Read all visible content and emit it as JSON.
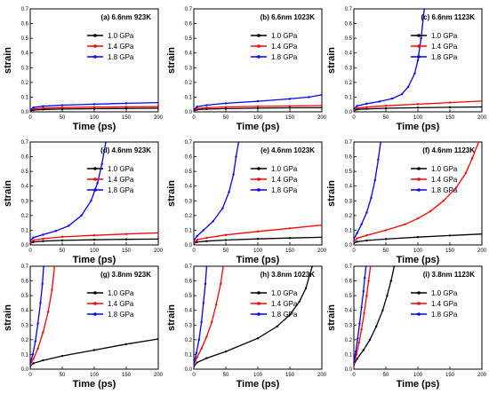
{
  "chart_data": [
    {
      "panel": "a",
      "type": "line",
      "title": "(a) 6.6nm  923K",
      "xlabel": "Time (ps)",
      "ylabel": "strain",
      "xlim": [
        0,
        200
      ],
      "ylim": [
        0,
        0.7
      ],
      "xticks": [
        "0",
        "50",
        "100",
        "150",
        "200"
      ],
      "yticks": [
        "0.0",
        "0.1",
        "0.2",
        "0.3",
        "0.4",
        "0.5",
        "0.6",
        "0.7"
      ],
      "legend": "top-right",
      "series": [
        {
          "name": "1.0 GPa",
          "color": "#000000",
          "x": [
            0,
            5,
            20,
            50,
            100,
            150,
            200
          ],
          "y": [
            0.005,
            0.012,
            0.016,
            0.019,
            0.021,
            0.023,
            0.024
          ]
        },
        {
          "name": "1.4 GPa",
          "color": "#ff0000",
          "x": [
            0,
            5,
            20,
            50,
            100,
            150,
            200
          ],
          "y": [
            0.008,
            0.02,
            0.025,
            0.029,
            0.032,
            0.034,
            0.035
          ]
        },
        {
          "name": "1.8 GPa",
          "color": "#0000ff",
          "x": [
            0,
            5,
            20,
            50,
            100,
            150,
            200
          ],
          "y": [
            0.012,
            0.03,
            0.038,
            0.045,
            0.052,
            0.058,
            0.063
          ]
        }
      ]
    },
    {
      "panel": "b",
      "type": "line",
      "title": "(b) 6.6nm  1023K",
      "xlabel": "Time (ps)",
      "ylabel": "strain",
      "xlim": [
        0,
        200
      ],
      "ylim": [
        0,
        0.7
      ],
      "xticks": [
        "0",
        "50",
        "100",
        "150",
        "200"
      ],
      "yticks": [
        "0.0",
        "0.1",
        "0.2",
        "0.3",
        "0.4",
        "0.5",
        "0.6",
        "0.7"
      ],
      "legend": "top-right",
      "series": [
        {
          "name": "1.0 GPa",
          "color": "#000000",
          "x": [
            0,
            5,
            20,
            50,
            100,
            150,
            200
          ],
          "y": [
            0.006,
            0.015,
            0.019,
            0.022,
            0.025,
            0.027,
            0.028
          ]
        },
        {
          "name": "1.4 GPa",
          "color": "#ff0000",
          "x": [
            0,
            5,
            20,
            50,
            100,
            150,
            200
          ],
          "y": [
            0.01,
            0.022,
            0.028,
            0.033,
            0.037,
            0.039,
            0.042
          ]
        },
        {
          "name": "1.8 GPa",
          "color": "#0000ff",
          "x": [
            0,
            5,
            20,
            50,
            100,
            150,
            180,
            200
          ],
          "y": [
            0.015,
            0.035,
            0.045,
            0.058,
            0.072,
            0.088,
            0.1,
            0.115
          ]
        }
      ]
    },
    {
      "panel": "c",
      "type": "line",
      "title": "(c) 6.6nm  1123K",
      "xlabel": "Time (ps)",
      "ylabel": "strain",
      "xlim": [
        0,
        200
      ],
      "ylim": [
        0,
        0.7
      ],
      "xticks": [
        "0",
        "50",
        "100",
        "150",
        "200"
      ],
      "yticks": [
        "0.0",
        "0.1",
        "0.2",
        "0.3",
        "0.4",
        "0.5",
        "0.6",
        "0.7"
      ],
      "legend": "top-right",
      "series": [
        {
          "name": "1.0 GPa",
          "color": "#000000",
          "x": [
            0,
            5,
            20,
            50,
            100,
            150,
            200
          ],
          "y": [
            0.007,
            0.016,
            0.02,
            0.024,
            0.028,
            0.031,
            0.033
          ]
        },
        {
          "name": "1.4 GPa",
          "color": "#ff0000",
          "x": [
            0,
            5,
            20,
            50,
            100,
            150,
            200
          ],
          "y": [
            0.012,
            0.025,
            0.032,
            0.041,
            0.052,
            0.063,
            0.073
          ]
        },
        {
          "name": "1.8 GPa",
          "color": "#0000ff",
          "x": [
            0,
            5,
            20,
            40,
            60,
            75,
            85,
            95,
            100,
            105,
            110
          ],
          "y": [
            0.02,
            0.04,
            0.055,
            0.07,
            0.09,
            0.12,
            0.17,
            0.26,
            0.35,
            0.5,
            0.7
          ]
        }
      ]
    },
    {
      "panel": "d",
      "type": "line",
      "title": "(d) 4.6nm  923K",
      "xlabel": "Time (ps)",
      "ylabel": "strain",
      "xlim": [
        0,
        200
      ],
      "ylim": [
        0,
        0.7
      ],
      "xticks": [
        "0",
        "50",
        "100",
        "150",
        "200"
      ],
      "yticks": [
        "0.0",
        "0.1",
        "0.2",
        "0.3",
        "0.4",
        "0.5",
        "0.6",
        "0.7"
      ],
      "legend": "top-right",
      "series": [
        {
          "name": "1.0 GPa",
          "color": "#000000",
          "x": [
            0,
            5,
            20,
            50,
            100,
            150,
            200
          ],
          "y": [
            0.01,
            0.02,
            0.026,
            0.031,
            0.035,
            0.038,
            0.04
          ]
        },
        {
          "name": "1.4 GPa",
          "color": "#ff0000",
          "x": [
            0,
            5,
            20,
            50,
            100,
            150,
            200
          ],
          "y": [
            0.015,
            0.032,
            0.042,
            0.055,
            0.065,
            0.074,
            0.082
          ]
        },
        {
          "name": "1.8 GPa",
          "color": "#0000ff",
          "x": [
            0,
            5,
            20,
            40,
            60,
            80,
            95,
            105,
            112,
            118
          ],
          "y": [
            0.03,
            0.05,
            0.07,
            0.095,
            0.13,
            0.2,
            0.3,
            0.42,
            0.55,
            0.7
          ]
        }
      ]
    },
    {
      "panel": "e",
      "type": "line",
      "title": "(e) 4.6nm  1023K",
      "xlabel": "Time (ps)",
      "ylabel": "strain",
      "xlim": [
        0,
        200
      ],
      "ylim": [
        0,
        0.7
      ],
      "xticks": [
        "0",
        "50",
        "100",
        "150",
        "200"
      ],
      "yticks": [
        "0.0",
        "0.1",
        "0.2",
        "0.3",
        "0.4",
        "0.5",
        "0.6",
        "0.7"
      ],
      "legend": "top-right",
      "series": [
        {
          "name": "1.0 GPa",
          "color": "#000000",
          "x": [
            0,
            5,
            20,
            50,
            100,
            150,
            200
          ],
          "y": [
            0.01,
            0.02,
            0.026,
            0.033,
            0.041,
            0.047,
            0.052
          ]
        },
        {
          "name": "1.4 GPa",
          "color": "#ff0000",
          "x": [
            0,
            5,
            20,
            50,
            100,
            150,
            200
          ],
          "y": [
            0.015,
            0.035,
            0.048,
            0.068,
            0.092,
            0.113,
            0.135
          ]
        },
        {
          "name": "1.8 GPa",
          "color": "#0000ff",
          "x": [
            0,
            5,
            15,
            30,
            45,
            55,
            62,
            66,
            70
          ],
          "y": [
            0.03,
            0.06,
            0.1,
            0.16,
            0.25,
            0.36,
            0.48,
            0.6,
            0.7
          ]
        }
      ]
    },
    {
      "panel": "f",
      "type": "line",
      "title": "(f) 4.6nm  1123K",
      "xlabel": "Time (ps)",
      "ylabel": "strain",
      "xlim": [
        0,
        200
      ],
      "ylim": [
        0,
        0.7
      ],
      "xticks": [
        "0",
        "50",
        "100",
        "150",
        "200"
      ],
      "yticks": [
        "0.0",
        "0.1",
        "0.2",
        "0.3",
        "0.4",
        "0.5",
        "0.6",
        "0.7"
      ],
      "legend": "top-right",
      "series": [
        {
          "name": "1.0 GPa",
          "color": "#000000",
          "x": [
            0,
            5,
            20,
            50,
            100,
            150,
            200
          ],
          "y": [
            0.012,
            0.022,
            0.03,
            0.04,
            0.053,
            0.064,
            0.074
          ]
        },
        {
          "name": "1.4 GPa",
          "color": "#ff0000",
          "x": [
            0,
            5,
            20,
            50,
            80,
            100,
            120,
            140,
            160,
            175,
            185,
            195
          ],
          "y": [
            0.02,
            0.045,
            0.065,
            0.1,
            0.14,
            0.18,
            0.23,
            0.3,
            0.39,
            0.49,
            0.59,
            0.7
          ]
        },
        {
          "name": "1.8 GPa",
          "color": "#0000ff",
          "x": [
            0,
            5,
            12,
            20,
            27,
            33,
            38,
            42
          ],
          "y": [
            0.04,
            0.08,
            0.14,
            0.22,
            0.32,
            0.44,
            0.58,
            0.7
          ]
        }
      ]
    },
    {
      "panel": "g",
      "type": "line",
      "title": "(g) 3.8nm  923K",
      "xlabel": "Time (ps)",
      "ylabel": "strain",
      "xlim": [
        0,
        200
      ],
      "ylim": [
        0,
        0.7
      ],
      "xticks": [
        "0",
        "50",
        "100",
        "150",
        "200"
      ],
      "yticks": [
        "0.0",
        "0.1",
        "0.2",
        "0.3",
        "0.4",
        "0.5",
        "0.6",
        "0.7"
      ],
      "legend": "top-right",
      "series": [
        {
          "name": "1.0 GPa",
          "color": "#000000",
          "x": [
            0,
            5,
            20,
            50,
            100,
            150,
            200
          ],
          "y": [
            0.02,
            0.04,
            0.06,
            0.09,
            0.13,
            0.17,
            0.205
          ]
        },
        {
          "name": "1.4 GPa",
          "color": "#ff0000",
          "x": [
            0,
            5,
            12,
            20,
            28,
            34,
            38
          ],
          "y": [
            0.03,
            0.07,
            0.14,
            0.25,
            0.39,
            0.54,
            0.7
          ]
        },
        {
          "name": "1.8 GPa",
          "color": "#0000ff",
          "x": [
            0,
            4,
            8,
            12,
            16,
            19,
            21
          ],
          "y": [
            0.04,
            0.1,
            0.19,
            0.31,
            0.45,
            0.58,
            0.7
          ]
        }
      ]
    },
    {
      "panel": "h",
      "type": "line",
      "title": "(h) 3.8nm  1023K",
      "xlabel": "Time (ps)",
      "ylabel": "strain",
      "xlim": [
        0,
        200
      ],
      "ylim": [
        0,
        0.7
      ],
      "xticks": [
        "0",
        "50",
        "100",
        "150",
        "200"
      ],
      "yticks": [
        "0.0",
        "0.1",
        "0.2",
        "0.3",
        "0.4",
        "0.5",
        "0.6",
        "0.7"
      ],
      "legend": "top-right",
      "series": [
        {
          "name": "1.0 GPa",
          "color": "#000000",
          "x": [
            0,
            5,
            20,
            50,
            100,
            130,
            150,
            165,
            175,
            185
          ],
          "y": [
            0.02,
            0.045,
            0.075,
            0.12,
            0.21,
            0.29,
            0.37,
            0.46,
            0.55,
            0.7
          ]
        },
        {
          "name": "1.4 GPa",
          "color": "#ff0000",
          "x": [
            0,
            5,
            12,
            20,
            28,
            35,
            42,
            46
          ],
          "y": [
            0.03,
            0.08,
            0.14,
            0.22,
            0.32,
            0.44,
            0.58,
            0.7
          ]
        },
        {
          "name": "1.8 GPa",
          "color": "#0000ff",
          "x": [
            0,
            4,
            8,
            12,
            15,
            18,
            20
          ],
          "y": [
            0.04,
            0.11,
            0.2,
            0.32,
            0.45,
            0.58,
            0.7
          ]
        }
      ]
    },
    {
      "panel": "i",
      "type": "line",
      "title": "(i) 3.8nm  1123K",
      "xlabel": "Time (ps)",
      "ylabel": "strain",
      "xlim": [
        0,
        200
      ],
      "ylim": [
        0,
        0.7
      ],
      "xticks": [
        "0",
        "50",
        "100",
        "150",
        "200"
      ],
      "yticks": [
        "0.0",
        "0.1",
        "0.2",
        "0.3",
        "0.4",
        "0.5",
        "0.6",
        "0.7"
      ],
      "legend": "top-right",
      "series": [
        {
          "name": "1.0 GPa",
          "color": "#000000",
          "x": [
            0,
            5,
            15,
            25,
            35,
            45,
            52,
            58,
            63
          ],
          "y": [
            0.03,
            0.07,
            0.13,
            0.2,
            0.29,
            0.4,
            0.5,
            0.6,
            0.7
          ]
        },
        {
          "name": "1.4 GPa",
          "color": "#ff0000",
          "x": [
            0,
            4,
            8,
            12,
            16,
            20,
            23,
            26
          ],
          "y": [
            0.04,
            0.1,
            0.18,
            0.27,
            0.38,
            0.5,
            0.6,
            0.7
          ]
        },
        {
          "name": "1.8 GPa",
          "color": "#0000ff",
          "x": [
            0,
            3,
            6,
            9,
            12,
            15,
            17,
            19
          ],
          "y": [
            0.05,
            0.12,
            0.21,
            0.31,
            0.42,
            0.53,
            0.62,
            0.7
          ]
        }
      ]
    }
  ]
}
